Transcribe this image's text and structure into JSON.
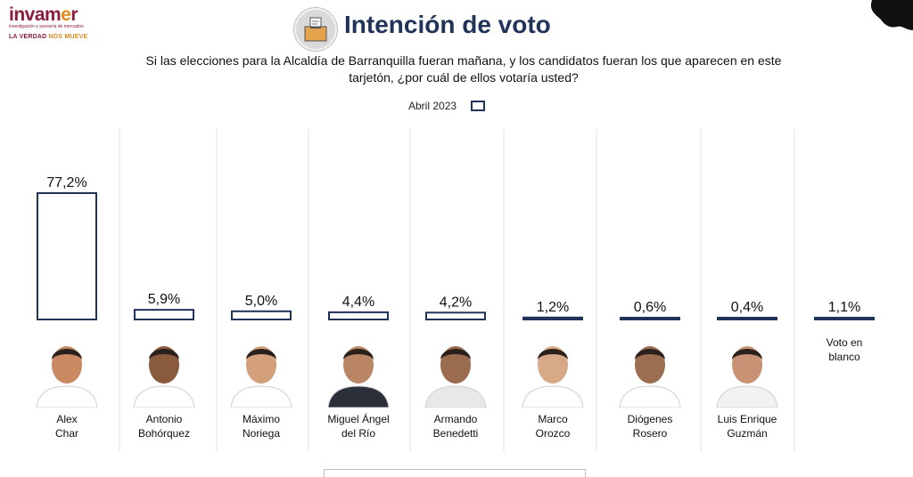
{
  "header": {
    "logo_brand_pre": "invam",
    "logo_brand_dot": "e",
    "logo_brand_post": "r",
    "logo_sub": "investigación y asesoría de mercados",
    "logo_slogan_a": "LA VERDAD ",
    "logo_slogan_b": "NOS MUEVE",
    "title": "Intención de voto",
    "question": "Si las elecciones para la Alcaldía de Barranquilla fueran mañana, y los candidatos fueran los que aparecen en este tarjetón, ¿por cuál de ellos votaría usted?"
  },
  "colors": {
    "bar_stroke": "#1f3458",
    "title": "#1f3458",
    "brand": "#8b1d3a",
    "accent": "#e08a1e",
    "divider": "#e3e3e3"
  },
  "chart_data": {
    "type": "bar",
    "categories": [
      "Alex\nChar",
      "Antonio\nBohórquez",
      "Máximo\nNoriega",
      "Miguel  Ángel\ndel Río",
      "Armando\nBenedetti",
      "Marco\nOrozco",
      "Diógenes\nRosero",
      "Luis Enrique\nGuzmán",
      "Voto en\nblanco"
    ],
    "series": [
      {
        "name": "Abril 2023",
        "values": [
          77.2,
          5.9,
          5.0,
          4.4,
          4.2,
          1.2,
          0.6,
          0.4,
          1.1
        ]
      }
    ],
    "data_labels": [
      "77,2%",
      "5,9%",
      "5,0%",
      "4,4%",
      "4,2%",
      "1,2%",
      "0,6%",
      "0,4%",
      "1,1%"
    ],
    "legend_position": "top-center",
    "grid": false,
    "ylim": [
      0,
      77.2
    ]
  }
}
